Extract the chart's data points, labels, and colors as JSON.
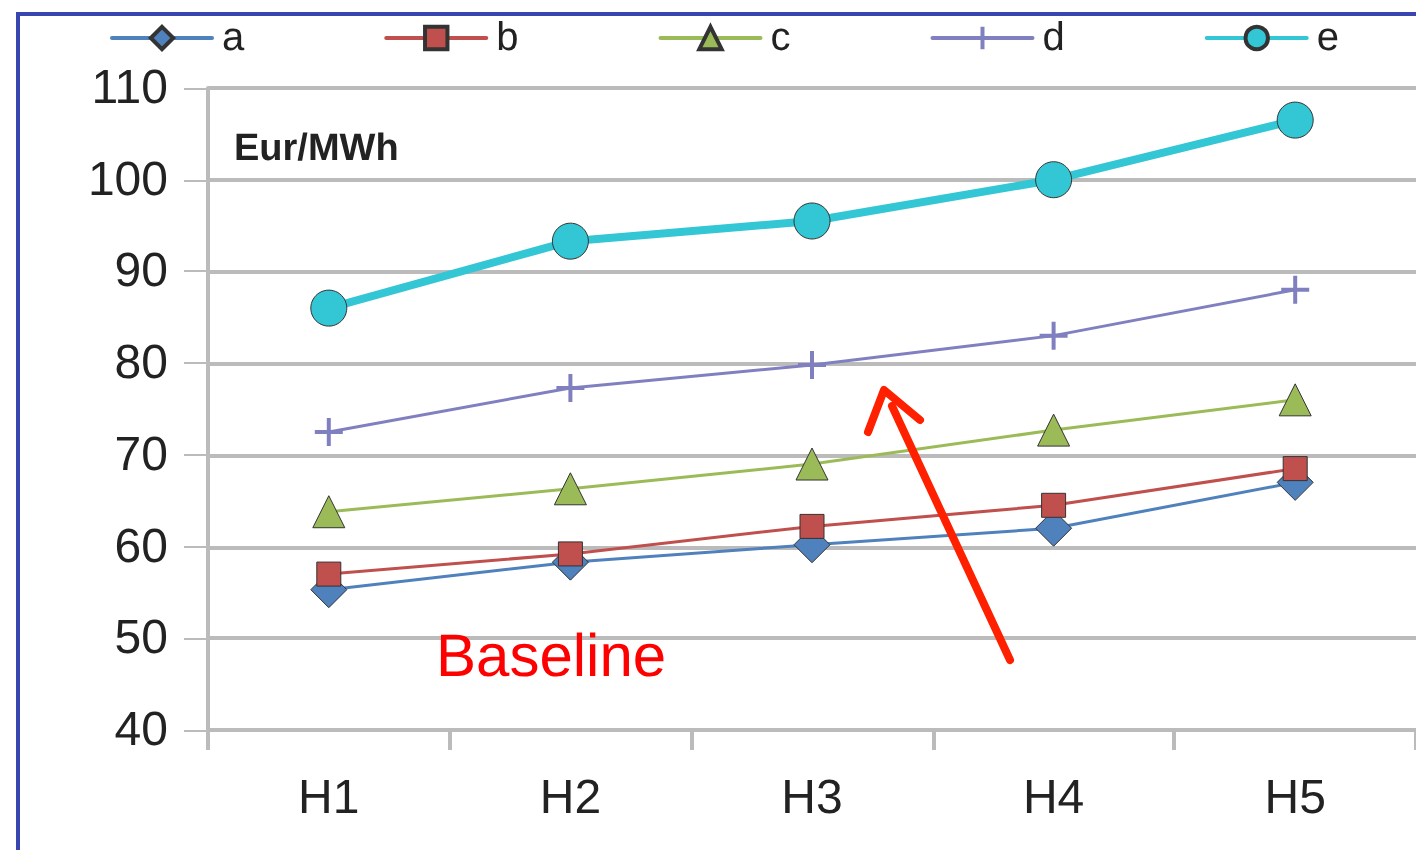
{
  "chart_data": {
    "type": "line",
    "ylabel": "Eur/MWh",
    "categories": [
      "H1",
      "H2",
      "H3",
      "H4",
      "H5"
    ],
    "series": [
      {
        "name": "a",
        "color": "#4f81bd",
        "marker": "diamond",
        "values": [
          55.3,
          58.3,
          60.2,
          62,
          67
        ]
      },
      {
        "name": "b",
        "color": "#c0504d",
        "marker": "square",
        "values": [
          57,
          59.2,
          62.2,
          64.5,
          68.5
        ]
      },
      {
        "name": "c",
        "color": "#9bbb59",
        "marker": "triangle",
        "values": [
          63.8,
          66.3,
          69,
          72.7,
          76
        ]
      },
      {
        "name": "d",
        "color": "#8080c0",
        "marker": "cross",
        "values": [
          72.5,
          77.3,
          79.8,
          83,
          88
        ]
      },
      {
        "name": "e",
        "color": "#33c6d4",
        "marker": "circle",
        "values": [
          86,
          93.3,
          95.5,
          100,
          106.5
        ]
      }
    ],
    "ylim": [
      40,
      110
    ],
    "yticks": [
      40,
      50,
      60,
      70,
      80,
      90,
      100,
      110
    ],
    "grid": "y",
    "legend": "top",
    "annotations": [
      "Baseline"
    ]
  }
}
